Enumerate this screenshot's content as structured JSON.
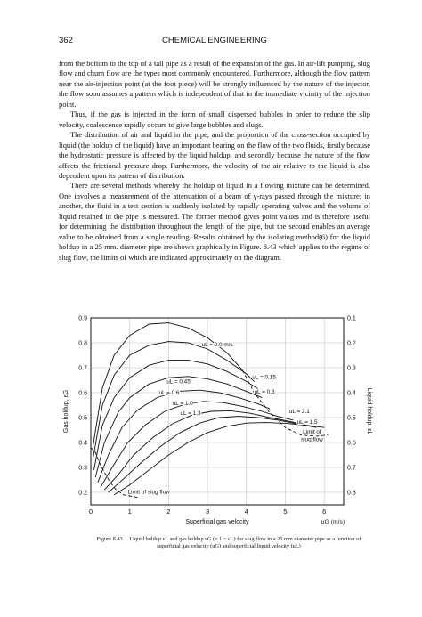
{
  "header": {
    "page_number": "362",
    "title": "CHEMICAL ENGINEERING"
  },
  "paragraphs": [
    "from the bottom to the top of a tall pipe as a result of the expansion of the gas. In air-lift pumping, slug flow and churn flow are the types most commonly encountered. Furthermore, although the flow pattern near the air-injection point (at the foot piece) will be strongly influenced by the nature of the injector, the flow soon assumes a pattern which is independent of that in the immediate vicinity of the injection point.",
    "Thus, if the gas is injected in the form of small dispersed bubbles in order to reduce the slip velocity, coalescence rapidly occurs to give large bubbles and slugs.",
    "The distribution of air and liquid in the pipe, and the proportion of the cross-section occupied by liquid (the holdup of the liquid) have an important bearing on the flow of the two fluids, firstly because the hydrostatic pressure is affected by the liquid holdup, and secondly because the nature of the flow affects the frictional pressure drop. Furthermore, the velocity of the air relative to the liquid is also dependent upon its pattern of distribution.",
    "There are several methods whereby the holdup of liquid in a flowing mixture can be determined. One involves a measurement of the attenuation of a beam of γ-rays passed through the mixture; in another, the fluid in a test section is suddenly isolated by rapidly operating valves and the volume of liquid retained in the pipe is measured. The former method gives point values and is therefore useful for determining the distribution throughout the length of the pipe, but the second enables an average value to be obtained from a single reading. Results obtained by the isolating method(6) for the liquid holdup in a 25 mm. diameter pipe are shown graphically in Figure. 8.43 which applies to the regime of slug flow, the limits of which are indicated approximately on the diagram."
  ],
  "figure": {
    "caption_number": "Figure 8.43.",
    "caption_text": "Liquid holdup εL and gas holdup εG (= 1 − εL) for slug flow in a 25 mm diameter pipe as a function of superficial gas velocity (uG) and superficial liquid velocity (uL)"
  },
  "chart_data": {
    "type": "line",
    "xlabel": "Superficial gas velocity",
    "xunit": "uG (m/s)",
    "ylabel_left": "Gas holdup, εG",
    "ylabel_right": "Liquid holdup, εL",
    "xlim": [
      0,
      6.5
    ],
    "ylim": [
      0.15,
      0.9
    ],
    "x_ticks": [
      0,
      1,
      2,
      3,
      4,
      5,
      6
    ],
    "y_ticks_left": [
      0.9,
      0.8,
      0.7,
      0.6,
      0.5,
      0.4,
      0.3,
      0.2
    ],
    "y_ticks_right": [
      0.1,
      0.2,
      0.3,
      0.4,
      0.5,
      0.6,
      0.7,
      0.8
    ],
    "grid": true,
    "series": [
      {
        "name": "uL = 0.0 m/s",
        "x": [
          0.05,
          0.3,
          0.6,
          1.0,
          1.5,
          2.0,
          2.5,
          3.0,
          3.5,
          3.9
        ],
        "y": [
          0.38,
          0.62,
          0.75,
          0.83,
          0.875,
          0.88,
          0.86,
          0.82,
          0.76,
          0.69
        ]
      },
      {
        "name": "uL = 0.15",
        "x": [
          0.05,
          0.3,
          0.6,
          1.0,
          1.5,
          2.0,
          2.5,
          3.0,
          3.5,
          4.0,
          4.2
        ],
        "y": [
          0.33,
          0.55,
          0.67,
          0.75,
          0.79,
          0.805,
          0.8,
          0.775,
          0.73,
          0.675,
          0.645
        ]
      },
      {
        "name": "uL = 0.3",
        "x": [
          0.08,
          0.3,
          0.6,
          1.0,
          1.5,
          2.0,
          2.5,
          3.0,
          3.5,
          4.0,
          4.3
        ],
        "y": [
          0.29,
          0.47,
          0.58,
          0.66,
          0.71,
          0.73,
          0.73,
          0.715,
          0.685,
          0.645,
          0.615
        ]
      },
      {
        "name": "uL = 0.45",
        "x": [
          0.12,
          0.35,
          0.7,
          1.0,
          1.5,
          2.0,
          2.5,
          3.0,
          3.5,
          4.0,
          4.4
        ],
        "y": [
          0.26,
          0.4,
          0.52,
          0.58,
          0.635,
          0.66,
          0.665,
          0.655,
          0.635,
          0.605,
          0.58
        ]
      },
      {
        "name": "uL = 0.6",
        "x": [
          0.18,
          0.45,
          0.8,
          1.2,
          1.7,
          2.2,
          2.8,
          3.3,
          3.8,
          4.3,
          4.6
        ],
        "y": [
          0.24,
          0.35,
          0.46,
          0.53,
          0.58,
          0.605,
          0.61,
          0.6,
          0.58,
          0.555,
          0.535
        ]
      },
      {
        "name": "uL = 1.0",
        "x": [
          0.25,
          0.55,
          0.95,
          1.4,
          1.9,
          2.4,
          2.9,
          3.4,
          3.9,
          4.4,
          4.8,
          5.2
        ],
        "y": [
          0.22,
          0.3,
          0.4,
          0.47,
          0.525,
          0.553,
          0.565,
          0.56,
          0.545,
          0.525,
          0.505,
          0.49
        ]
      },
      {
        "name": "uL = 1.3",
        "x": [
          0.35,
          0.7,
          1.1,
          1.6,
          2.1,
          2.6,
          3.1,
          3.6,
          4.1,
          4.6,
          5.1,
          5.5
        ],
        "y": [
          0.21,
          0.27,
          0.35,
          0.42,
          0.475,
          0.51,
          0.525,
          0.527,
          0.517,
          0.5,
          0.485,
          0.472
        ]
      },
      {
        "name": "uL = 1.5",
        "x": [
          0.45,
          0.85,
          1.3,
          1.8,
          2.3,
          2.8,
          3.3,
          3.8,
          4.3,
          4.8,
          5.3,
          5.8
        ],
        "y": [
          0.2,
          0.255,
          0.32,
          0.385,
          0.44,
          0.478,
          0.5,
          0.505,
          0.5,
          0.49,
          0.475,
          0.46
        ]
      },
      {
        "name": "uL = 2.1",
        "x": [
          0.6,
          1.0,
          1.5,
          2.0,
          2.5,
          3.0,
          3.5,
          4.0,
          4.5,
          5.0,
          5.5,
          6.0
        ],
        "y": [
          0.19,
          0.23,
          0.29,
          0.35,
          0.4,
          0.44,
          0.465,
          0.478,
          0.48,
          0.477,
          0.47,
          0.46
        ]
      },
      {
        "name": "Limit of slug flow (low)",
        "style": "dashed",
        "x": [
          0.0,
          0.12,
          0.22,
          0.35,
          0.5,
          0.65,
          0.85,
          1.2
        ],
        "y": [
          0.38,
          0.36,
          0.32,
          0.28,
          0.24,
          0.21,
          0.19,
          0.18
        ]
      },
      {
        "name": "Limit of slug flow (high)",
        "style": "dashed",
        "x": [
          3.9,
          4.2,
          4.6,
          5.0,
          5.4,
          5.8,
          6.1
        ],
        "y": [
          0.69,
          0.6,
          0.52,
          0.46,
          0.43,
          0.425,
          0.43
        ]
      }
    ],
    "annotations": [
      {
        "text": "uL = 0.0 m/s",
        "x": 2.85,
        "y": 0.785
      },
      {
        "text": "uL = 0.15",
        "x": 4.15,
        "y": 0.655
      },
      {
        "text": "uL = 0.3",
        "x": 4.2,
        "y": 0.597
      },
      {
        "text": "uL = 0.45",
        "x": 1.95,
        "y": 0.638
      },
      {
        "text": "uL = 0.6",
        "x": 1.75,
        "y": 0.593
      },
      {
        "text": "uL = 1.0",
        "x": 2.1,
        "y": 0.55
      },
      {
        "text": "uL = 1.3",
        "x": 2.3,
        "y": 0.51
      },
      {
        "text": "uL = 2.1",
        "x": 5.1,
        "y": 0.517
      },
      {
        "text": "uL = 1.5",
        "x": 5.3,
        "y": 0.475
      },
      {
        "text": "Limit of",
        "x": 5.45,
        "y": 0.436
      },
      {
        "text": "slug flow",
        "x": 5.4,
        "y": 0.406
      },
      {
        "text": "Limit of slug flow",
        "x": 0.95,
        "y": 0.195
      }
    ]
  }
}
